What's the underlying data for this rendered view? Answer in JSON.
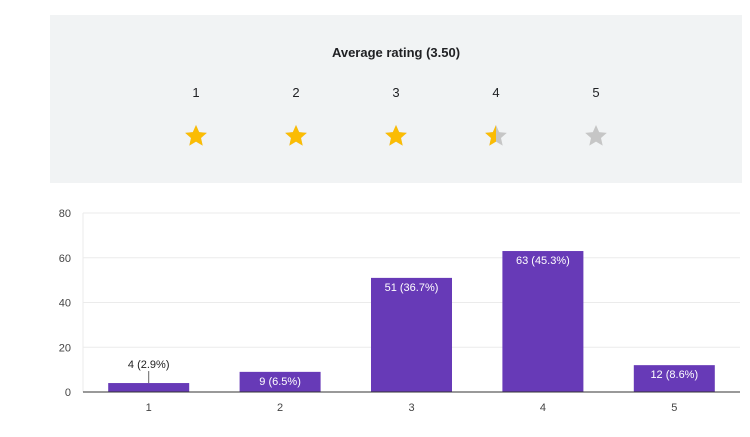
{
  "rating": {
    "title": "Average rating (3.50)",
    "average": 3.5,
    "max_stars": 5,
    "star_labels": [
      "1",
      "2",
      "3",
      "4",
      "5"
    ],
    "filled_color": "#fbbc04",
    "empty_color": "#c6c6c6"
  },
  "chart_data": {
    "type": "bar",
    "title": "",
    "xlabel": "",
    "ylabel": "",
    "categories": [
      "1",
      "2",
      "3",
      "4",
      "5"
    ],
    "values": [
      4,
      9,
      51,
      63,
      12
    ],
    "data_labels": [
      "4 (2.9%)",
      "9 (6.5%)",
      "51 (36.7%)",
      "63 (45.3%)",
      "12 (8.6%)"
    ],
    "ylim": [
      0,
      80
    ],
    "yticks": [
      "0",
      "20",
      "40",
      "60",
      "80"
    ],
    "grid": true,
    "legend": "none",
    "bar_color": "#673ab7"
  }
}
